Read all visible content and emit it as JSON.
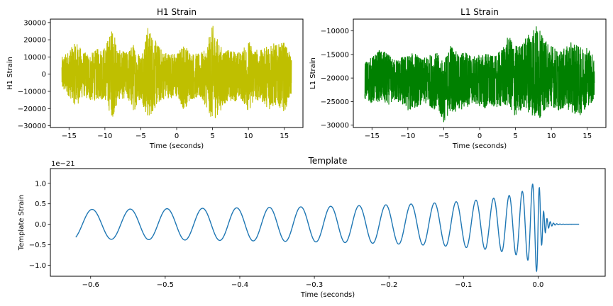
{
  "chart_data": [
    {
      "id": "h1",
      "type": "line",
      "title": "H1 Strain",
      "xlabel": "Time (seconds)",
      "ylabel": "H1 Strain",
      "xlim": [
        -17.6,
        17.6
      ],
      "ylim": [
        -31000,
        32000
      ],
      "xticks": [
        -15,
        -10,
        -5,
        0,
        5,
        10,
        15
      ],
      "yticks": [
        -30000,
        -20000,
        -10000,
        0,
        10000,
        20000,
        30000
      ],
      "line_color": "#bfbf00",
      "series": [
        {
          "x": [
            -16,
            -15,
            -14,
            -13,
            -12,
            -11,
            -10,
            -9,
            -8,
            -7,
            -6,
            -5,
            -4,
            -3,
            -2,
            -1,
            0,
            1,
            2,
            3,
            4,
            5,
            6,
            7,
            8,
            9,
            10,
            11,
            12,
            13,
            14,
            15,
            16
          ],
          "upper": [
            10000,
            14000,
            19000,
            13000,
            12000,
            15000,
            16000,
            27000,
            14000,
            13000,
            18000,
            11000,
            28000,
            20000,
            14000,
            13000,
            12000,
            18000,
            13000,
            12000,
            14000,
            29000,
            17000,
            14000,
            14000,
            13000,
            20000,
            15000,
            14000,
            20000,
            17000,
            19000,
            10000
          ],
          "lower": [
            -10000,
            -13000,
            -19000,
            -13000,
            -16000,
            -15000,
            -15000,
            -26000,
            -15000,
            -14000,
            -22000,
            -14000,
            -27000,
            -20000,
            -15000,
            -14000,
            -14000,
            -21000,
            -15000,
            -14000,
            -18000,
            -28000,
            -22000,
            -16000,
            -16000,
            -15000,
            -22000,
            -15000,
            -17000,
            -21000,
            -18000,
            -22000,
            -12000
          ]
        }
      ]
    },
    {
      "id": "l1",
      "type": "line",
      "title": "L1 Strain",
      "xlabel": "Time (seconds)",
      "ylabel": "L1 Strain",
      "xlim": [
        -17.6,
        17.6
      ],
      "ylim": [
        -30500,
        -7500
      ],
      "xticks": [
        -15,
        -10,
        -5,
        0,
        5,
        10,
        15
      ],
      "yticks": [
        -30000,
        -25000,
        -20000,
        -15000,
        -10000
      ],
      "line_color": "#008000",
      "series": [
        {
          "x": [
            -16,
            -15,
            -14,
            -13,
            -12,
            -11,
            -10,
            -9,
            -8,
            -7,
            -6,
            -5,
            -4,
            -3,
            -2,
            -1,
            0,
            1,
            2,
            3,
            4,
            5,
            6,
            7,
            8,
            9,
            10,
            11,
            12,
            13,
            14,
            15,
            16
          ],
          "upper": [
            -16500,
            -15500,
            -14000,
            -14500,
            -16000,
            -15500,
            -15000,
            -14500,
            -16000,
            -15000,
            -14500,
            -16500,
            -12500,
            -15000,
            -14000,
            -15500,
            -15000,
            -14500,
            -15500,
            -14000,
            -11000,
            -13000,
            -12500,
            -9500,
            -8500,
            -12000,
            -12500,
            -14500,
            -13500,
            -12000,
            -13500,
            -13000,
            -15500
          ],
          "lower": [
            -24500,
            -25500,
            -25000,
            -26000,
            -25000,
            -25500,
            -27000,
            -26500,
            -25500,
            -26000,
            -27000,
            -29500,
            -27000,
            -27500,
            -26500,
            -25500,
            -26000,
            -27000,
            -26000,
            -26500,
            -26000,
            -28500,
            -26500,
            -27500,
            -29500,
            -27000,
            -26000,
            -27000,
            -26500,
            -27500,
            -28000,
            -26000,
            -25000
          ]
        }
      ]
    },
    {
      "id": "template",
      "type": "line",
      "title": "Template",
      "xlabel": "Time (seconds)",
      "ylabel": "Template Strain",
      "offset_label": "1e−21",
      "xlim": [
        -0.654,
        0.09
      ],
      "ylim": [
        -1.27,
        1.36
      ],
      "xticks": [
        -0.6,
        -0.5,
        -0.4,
        -0.3,
        -0.2,
        -0.1,
        0.0
      ],
      "xtick_labels": [
        "−0.6",
        "−0.5",
        "−0.4",
        "−0.3",
        "−0.2",
        "−0.1",
        "0.0"
      ],
      "yticks": [
        -1.0,
        -0.5,
        0.0,
        0.5,
        1.0
      ],
      "ytick_labels": [
        "−1.0",
        "−0.5",
        "0.0",
        "0.5",
        "1.0"
      ],
      "line_color": "#1f77b4",
      "series": [
        {
          "x_start": -0.62,
          "x_merger": 0.0,
          "x_end": 0.055,
          "initial_amplitude": 0.36,
          "peak_amplitude": 1.22,
          "initial_frequency": 19,
          "peak_frequency": 230
        }
      ]
    }
  ]
}
